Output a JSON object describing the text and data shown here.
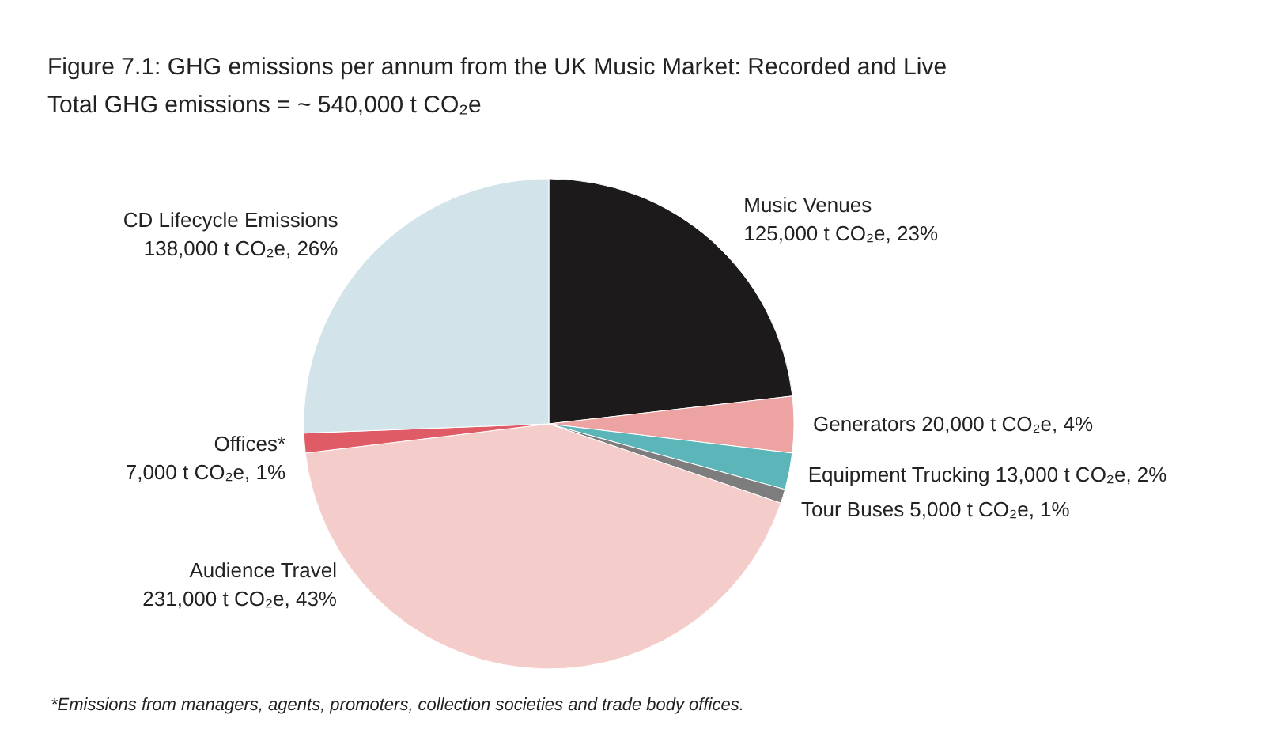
{
  "chart_data": {
    "type": "pie",
    "title": "Figure 7.1: GHG emissions per annum from the UK Music Market: Recorded and Live",
    "subtitle": "Total GHG emissions = ~ 540,000 t CO₂e",
    "categories": [
      "Music Venues",
      "Generators",
      "Equipment Trucking",
      "Tour Buses",
      "Audience Travel",
      "Offices*",
      "CD Lifecycle Emissions"
    ],
    "values": [
      125000,
      20000,
      13000,
      5000,
      231000,
      7000,
      138000
    ],
    "colors": [
      "#1c1a1b",
      "#eea3a3",
      "#5cb5b8",
      "#7d7d7d",
      "#f4cdcb",
      "#df5b66",
      "#d2e4ea"
    ],
    "value_labels": [
      "125,000 t CO₂e, 23%",
      "20,000 t CO₂e, 4%",
      "13,000 t CO₂e, 2%",
      "5,000 t CO₂e, 1%",
      "231,000 t CO₂e, 43%",
      "7,000 t CO₂e, 1%",
      "138,000 t CO₂e, 26%"
    ],
    "annotations": [
      "*Emissions from managers, agents, promoters, collection societies and trade body offices."
    ]
  }
}
